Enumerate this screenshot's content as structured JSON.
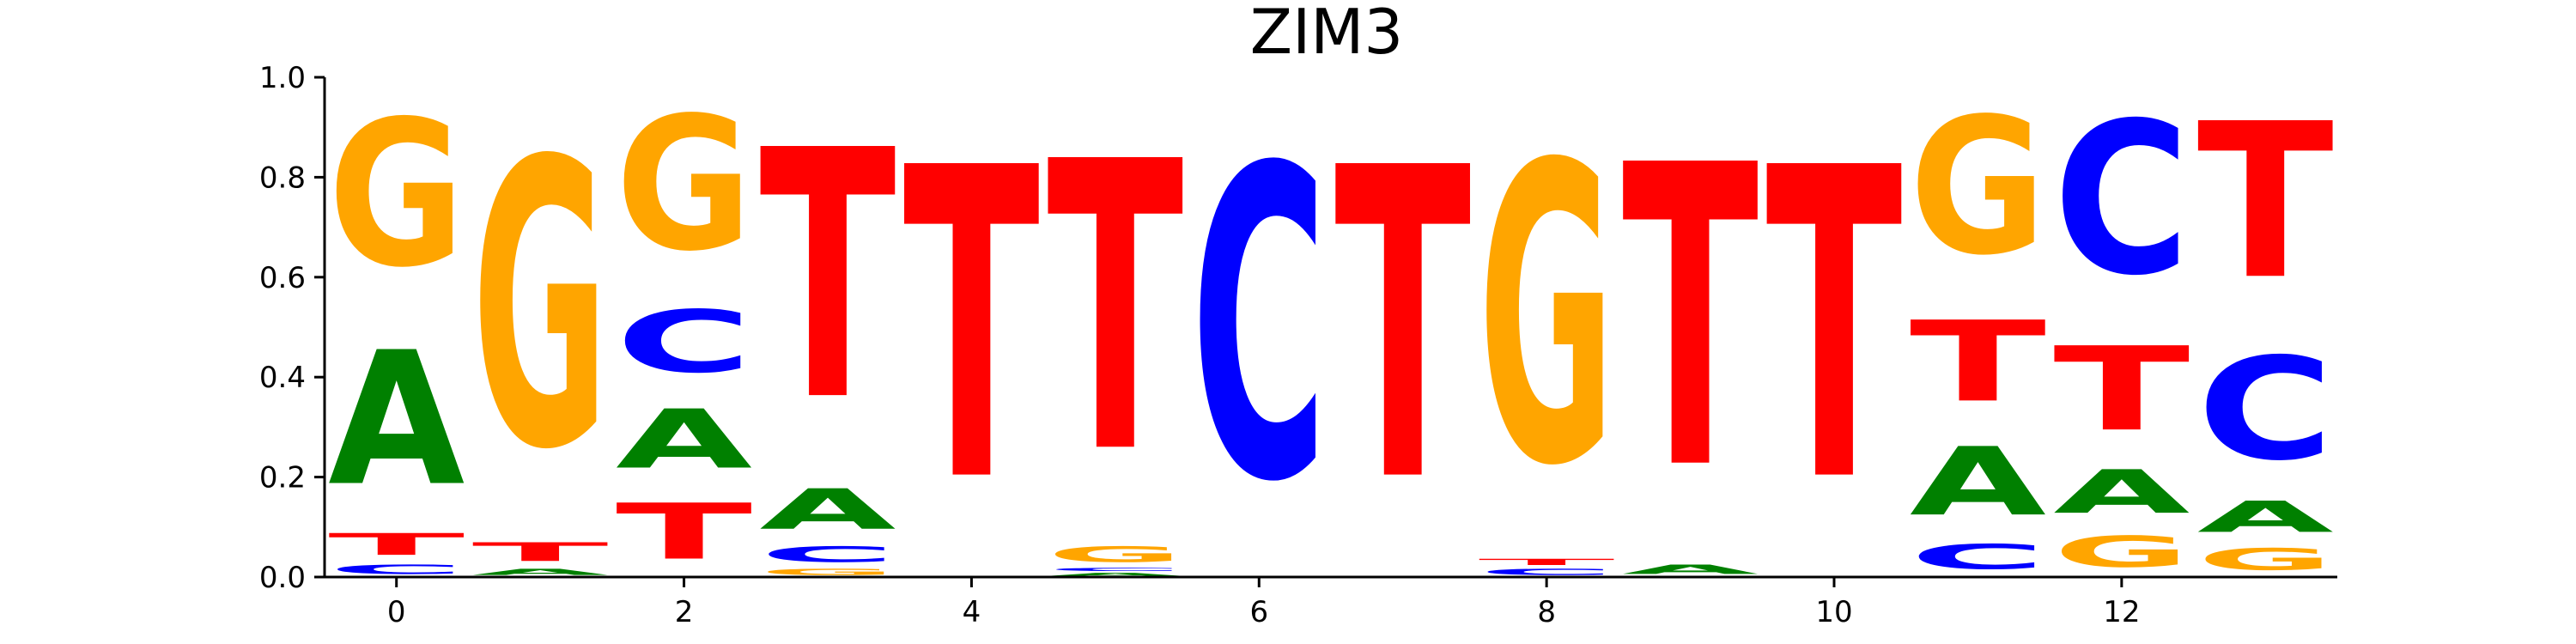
{
  "chart_data": {
    "type": "sequence-logo",
    "title": "ZIM3",
    "xlabel": "",
    "ylabel": "",
    "ylim": [
      0,
      1
    ],
    "xlim": [
      -0.5,
      13.5
    ],
    "x_ticks": [
      0,
      2,
      4,
      6,
      8,
      10,
      12
    ],
    "y_ticks": [
      0.0,
      0.2,
      0.4,
      0.6,
      0.8,
      1.0
    ],
    "x_tick_labels": [
      "0",
      "2",
      "4",
      "6",
      "8",
      "10",
      "12"
    ],
    "y_tick_labels": [
      "0.0",
      "0.2",
      "0.4",
      "0.6",
      "0.8",
      "1.0"
    ],
    "colors": {
      "A": "#008000",
      "C": "#0000ff",
      "G": "#ffa500",
      "T": "#ff0000"
    },
    "positions": [
      {
        "x": 0,
        "stack": [
          [
            "C",
            0.03
          ],
          [
            "T",
            0.07
          ],
          [
            "A",
            0.43
          ],
          [
            "G",
            0.47
          ]
        ]
      },
      {
        "x": 1,
        "stack": [
          [
            "A",
            0.02
          ],
          [
            "T",
            0.06
          ],
          [
            "G",
            0.92
          ]
        ]
      },
      {
        "x": 2,
        "stack": [
          [
            "T",
            0.18
          ],
          [
            "A",
            0.19
          ],
          [
            "C",
            0.2
          ],
          [
            "G",
            0.43
          ]
        ]
      },
      {
        "x": 3,
        "stack": [
          [
            "G",
            0.02
          ],
          [
            "C",
            0.05
          ],
          [
            "A",
            0.13
          ],
          [
            "T",
            0.8
          ]
        ]
      },
      {
        "x": 4,
        "stack": [
          [
            "T",
            1.0
          ]
        ]
      },
      {
        "x": 5,
        "stack": [
          [
            "A",
            0.01
          ],
          [
            "C",
            0.01
          ],
          [
            "G",
            0.05
          ],
          [
            "T",
            0.93
          ]
        ]
      },
      {
        "x": 6,
        "stack": [
          [
            "C",
            1.0
          ]
        ]
      },
      {
        "x": 7,
        "stack": [
          [
            "T",
            1.0
          ]
        ]
      },
      {
        "x": 8,
        "stack": [
          [
            "C",
            0.02
          ],
          [
            "T",
            0.02
          ],
          [
            "G",
            0.96
          ]
        ]
      },
      {
        "x": 9,
        "stack": [
          [
            "A",
            0.03
          ],
          [
            "T",
            0.97
          ]
        ]
      },
      {
        "x": 10,
        "stack": [
          [
            "T",
            1.0
          ]
        ]
      },
      {
        "x": 11,
        "stack": [
          [
            "C",
            0.08
          ],
          [
            "A",
            0.22
          ],
          [
            "T",
            0.26
          ],
          [
            "G",
            0.44
          ]
        ]
      },
      {
        "x": 12,
        "stack": [
          [
            "G",
            0.1
          ],
          [
            "A",
            0.14
          ],
          [
            "T",
            0.27
          ],
          [
            "C",
            0.49
          ]
        ]
      },
      {
        "x": 13,
        "stack": [
          [
            "G",
            0.07
          ],
          [
            "A",
            0.1
          ],
          [
            "C",
            0.33
          ],
          [
            "T",
            0.5
          ]
        ]
      }
    ]
  }
}
